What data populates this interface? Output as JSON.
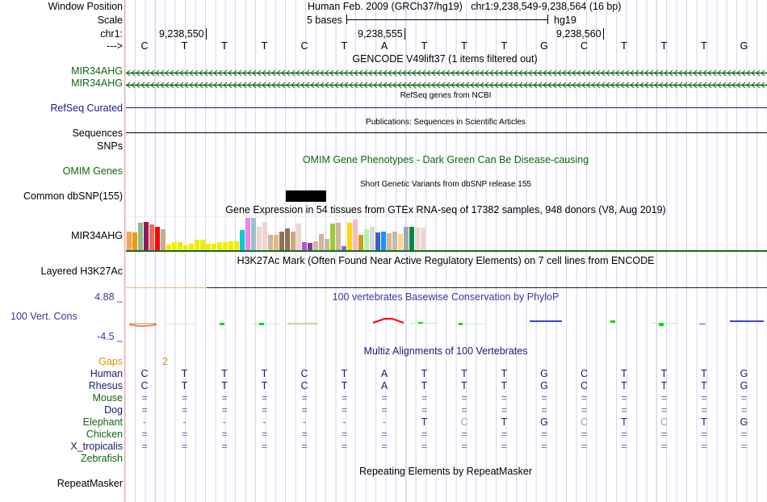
{
  "header": {
    "window_position_label": "Window Position",
    "assembly": "Human Feb. 2009 (GRCh37/hg19)",
    "position": "chr1:9,238,549-9,238,564 (16 bp)",
    "scale_label": "Scale",
    "scale_text": "5 bases",
    "scale_db": "hg19",
    "chrom_label": "chr1:",
    "coords": [
      "9,238,550",
      "9,238,555",
      "9,238,560"
    ],
    "strand_label": "--->"
  },
  "bases": [
    "C",
    "T",
    "T",
    "T",
    "C",
    "T",
    "A",
    "T",
    "T",
    "T",
    "G",
    "C",
    "T",
    "T",
    "T",
    "G"
  ],
  "tracks": {
    "gencode_title": "GENCODE V49lift37 (1 items filtered out)",
    "gencode_items": [
      "MIR34AHG",
      "MIR34AHG"
    ],
    "refseq_title": "RefSeq genes from NCBI",
    "refseq_label": "RefSeq Curated",
    "pubs_title": "Publications: Sequences in Scientific Articles",
    "pubs_label": "Sequences",
    "snps_label": "SNPs",
    "omim_title": "OMIM Gene Phenotypes - Dark Green Can Be Disease-causing",
    "omim_label": "OMIM Genes",
    "dbsnp_title": "Short Genetic Variants from dbSNP release 155",
    "dbsnp_label": "Common dbSNP(155)",
    "gtex_title": "Gene Expression in 54 tissues from GTEx RNA-seq of 17382 samples, 948 donors (V8, Aug 2019)",
    "gtex_label": "MIR34AHG",
    "h3k_title": "H3K27Ac Mark (Often Found Near Active Regulatory Elements) on 7 cell lines from ENCODE",
    "h3k_label": "Layered H3K27Ac",
    "cons_title": "100 vertebrates Basewise Conservation by PhyloP",
    "cons_label": "100 Vert. Cons",
    "cons_max": "4.88 _",
    "cons_min": "-4.5 _",
    "multiz_title": "Multiz Alignments of 100 Vertebrates",
    "gaps_label": "Gaps",
    "gaps_value": "2",
    "repeat_title": "Repeating Elements by RepeatMasker",
    "repeat_label": "RepeatMasker"
  },
  "alignment": [
    {
      "species": "Human",
      "cls": "navy",
      "seq": [
        "C",
        "T",
        "T",
        "T",
        "C",
        "T",
        "A",
        "T",
        "T",
        "T",
        "G",
        "C",
        "T",
        "T",
        "T",
        "G"
      ]
    },
    {
      "species": "Rhesus",
      "cls": "navy",
      "seq": [
        "C",
        "T",
        "T",
        "T",
        "C",
        "T",
        "A",
        "T",
        "T",
        "T",
        "G",
        "C",
        "T",
        "T",
        "T",
        "G"
      ]
    },
    {
      "species": "Mouse",
      "cls": "green",
      "seq": [
        "=",
        "=",
        "=",
        "=",
        "=",
        "=",
        "=",
        "=",
        "=",
        "=",
        "=",
        "=",
        "=",
        "=",
        "=",
        "="
      ]
    },
    {
      "species": "Dog",
      "cls": "navy",
      "seq": [
        "=",
        "=",
        "=",
        "=",
        "=",
        "=",
        "=",
        "=",
        "=",
        "=",
        "=",
        "=",
        "=",
        "=",
        "=",
        "="
      ]
    },
    {
      "species": "Elephant",
      "cls": "green",
      "seq": [
        "-",
        "-",
        "-",
        "-",
        "-",
        "-",
        "-",
        "T",
        "C",
        "T",
        "G",
        "C",
        "T",
        "C",
        "T",
        "G"
      ]
    },
    {
      "species": "Chicken",
      "cls": "green",
      "seq": [
        "=",
        "=",
        "=",
        "=",
        "=",
        "=",
        "=",
        "=",
        "=",
        "=",
        "=",
        "=",
        "=",
        "=",
        "=",
        "="
      ]
    },
    {
      "species": "X_tropicalis",
      "cls": "navy",
      "seq": [
        "=",
        "=",
        "=",
        "=",
        "=",
        "=",
        "=",
        "=",
        "=",
        "=",
        "=",
        "=",
        "=",
        "=",
        "=",
        "="
      ]
    },
    {
      "species": "Zebrafish",
      "cls": "green",
      "seq": []
    }
  ],
  "chart_data": {
    "type": "bar",
    "title": "Gene Expression in 54 tissues from GTEx",
    "values": [
      73,
      71,
      106,
      109,
      101,
      91,
      82,
      25,
      32,
      34,
      22,
      28,
      43,
      43,
      28,
      28,
      32,
      34,
      37,
      37,
      79,
      124,
      124,
      91,
      109,
      61,
      61,
      73,
      85,
      73,
      103,
      34,
      31,
      37,
      64,
      46,
      103,
      106,
      19,
      106,
      118,
      61,
      82,
      91,
      70,
      73,
      67,
      73,
      64,
      91,
      91,
      88,
      88,
      3
    ],
    "colors": [
      "#f7a24d",
      "#ef9a0a",
      "#8fbc8f",
      "#8b1c62",
      "#ee6a50",
      "#ff0000",
      "#c9ab8c",
      "#eeee00",
      "#eeee00",
      "#eeee00",
      "#eeee00",
      "#eeee00",
      "#eeee00",
      "#eeee00",
      "#eeee00",
      "#eeee00",
      "#eeee00",
      "#eeee00",
      "#eeee00",
      "#eeee00",
      "#00ced1",
      "#ee82ee",
      "#9ac0cd",
      "#eed5d2",
      "#eed5d2",
      "#cdb79e",
      "#e8b57a",
      "#8b7355",
      "#8b7355",
      "#cdaa7d",
      "#eed5d2",
      "#b452cd",
      "#7d3c98",
      "#cdb79e",
      "#cdb79e",
      "#cdb79e",
      "#9acd32",
      "#cdb79e",
      "#7b68ee",
      "#ffd700",
      "#ffb6c1",
      "#cd9b1d",
      "#b4eeb4",
      "#d9d9d9",
      "#3a5fcd",
      "#1e90ff",
      "#cdb79e",
      "#cdb79e",
      "#ffd39b",
      "#a6a6a6",
      "#008b45",
      "#eed5d2",
      "#eed5d2",
      "#cdc9c9"
    ]
  }
}
